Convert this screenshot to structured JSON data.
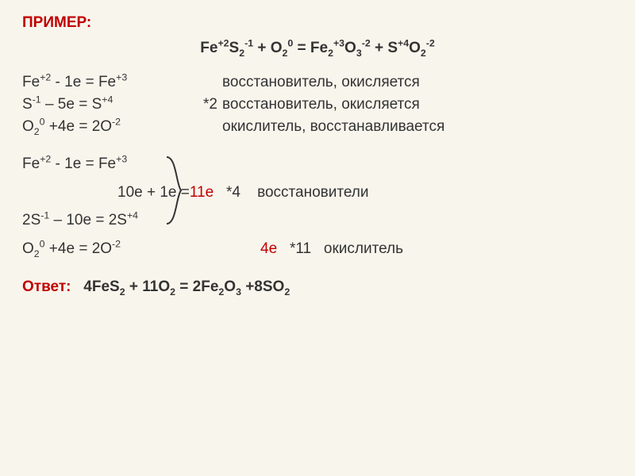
{
  "colors": {
    "background": "#f8f5ec",
    "text": "#333333",
    "accent": "#c00000",
    "brace": "#333333"
  },
  "title": "ПРИМЕР:",
  "main_equation_html": "Fe<sup>+2</sup>S<sub>2</sub><sup>-1</sup> + O<sub>2</sub><sup>0</sup> = Fe<sub>2</sub><sup>+3</sup>O<sub>3</sub><sup>-2</sup> + S<sup>+4</sup>O<sub>2</sub><sup>-2</sup>",
  "half_reactions_1": [
    {
      "eq": "Fe<sup>+2</sup> - 1e = Fe<sup>+3</sup>",
      "mult": "",
      "desc": "восстановитель, окисляется"
    },
    {
      "eq": "S<sup>-1</sup> – 5e = S<sup>+4</sup>",
      "mult": "*2",
      "desc": "восстановитель, окисляется"
    },
    {
      "eq": "O<sub>2</sub><sup>0</sup> +4e = 2O<sup>-2</sup>",
      "mult": "",
      "desc": "окислитель, восстанавливается"
    }
  ],
  "block2_line1": "Fe<sup>+2</sup> - 1e = Fe<sup>+3</sup>",
  "block2_mid_prefix": "10e + 1e = ",
  "block2_mid_red": "11e",
  "block2_mid_suffix": "   *4    восстановители",
  "block2_line3": "2S<sup>-1</sup> – 10e = 2S<sup>+4</sup>",
  "block2_ox_eq": "O<sub>2</sub><sup>0</sup> +4e = 2O<sup>-2</sup>",
  "block2_ox_red": "4e",
  "block2_ox_suffix": "   *11   окислитель",
  "answer_label": "Ответ:",
  "answer_eq_html": "   4FeS<sub>2</sub> + 11O<sub>2</sub> = 2Fe<sub>2</sub>O<sub>3</sub> +8SO<sub>2</sub>"
}
